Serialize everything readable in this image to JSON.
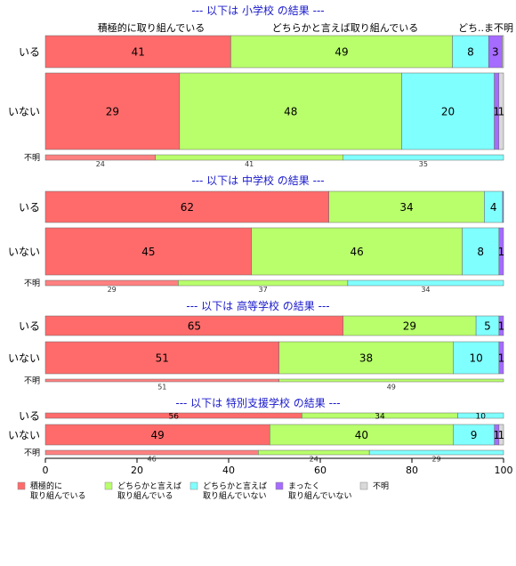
{
  "chart_data": {
    "type": "bar",
    "orientation": "horizontal-stacked",
    "xlim": [
      0,
      100
    ],
    "xticks": [
      0,
      20,
      40,
      60,
      80,
      100
    ],
    "column_headers": [
      "積極的に取り組んでいる",
      "どちらかと言えば取り組んでいる",
      "どち..ま不明"
    ],
    "legend": [
      {
        "key": "s1",
        "label_lines": [
          "積極的に",
          "取り組んでいる"
        ],
        "color": "#ff6b6b"
      },
      {
        "key": "s2",
        "label_lines": [
          "どちらかと言えば",
          "取り組んでいる"
        ],
        "color": "#b8ff6b"
      },
      {
        "key": "s3",
        "label_lines": [
          "どちらかと言えば",
          "取り組んでいない"
        ],
        "color": "#80ffff"
      },
      {
        "key": "s4",
        "label_lines": [
          "まったく",
          "取り組んでいない"
        ],
        "color": "#a66bff"
      },
      {
        "key": "s5",
        "label_lines": [
          "不明"
        ],
        "color": "#d9d9d9"
      }
    ],
    "panels": [
      {
        "title": "--- 以下は 小学校 の結果 ---",
        "rows": [
          {
            "label": "いる",
            "values": [
              41,
              49,
              8,
              3,
              0.3
            ],
            "labels": [
              "41",
              "49",
              "8",
              "3",
              ""
            ]
          },
          {
            "label": "いない",
            "values": [
              29,
              48,
              20,
              1,
              1
            ],
            "labels": [
              "29",
              "48",
              "20",
              "1",
              "1"
            ]
          },
          {
            "label": "不明",
            "values": [
              24,
              41,
              35
            ],
            "labels": [
              "24",
              "41",
              "35"
            ],
            "small": true
          }
        ]
      },
      {
        "title": "--- 以下は 中学校 の結果 ---",
        "rows": [
          {
            "label": "いる",
            "values": [
              62,
              34,
              4,
              0.2,
              0
            ],
            "labels": [
              "62",
              "34",
              "4",
              "",
              ""
            ]
          },
          {
            "label": "いない",
            "values": [
              45,
              46,
              8,
              1,
              0
            ],
            "labels": [
              "45",
              "46",
              "8",
              "1",
              ""
            ]
          },
          {
            "label": "不明",
            "values": [
              29,
              37,
              34
            ],
            "labels": [
              "29",
              "37",
              "34"
            ],
            "small": true
          }
        ]
      },
      {
        "title": "--- 以下は 高等学校 の結果 ---",
        "rows": [
          {
            "label": "いる",
            "values": [
              65,
              29,
              5,
              1,
              0
            ],
            "labels": [
              "65",
              "29",
              "5",
              "1",
              ""
            ]
          },
          {
            "label": "いない",
            "values": [
              51,
              38,
              10,
              1,
              0
            ],
            "labels": [
              "51",
              "38",
              "10",
              "1",
              ""
            ]
          },
          {
            "label": "不明",
            "values": [
              51,
              49
            ],
            "labels": [
              "51",
              "49"
            ],
            "small": true
          }
        ]
      },
      {
        "title": "--- 以下は 特別支援学校 の結果 ---",
        "rows": [
          {
            "label": "いる",
            "values": [
              56,
              34,
              10
            ],
            "labels": [
              "56",
              "34",
              "10"
            ],
            "thin": true
          },
          {
            "label": "いない",
            "values": [
              49,
              40,
              9,
              1,
              1
            ],
            "labels": [
              "49",
              "40",
              "9",
              "1",
              "1"
            ]
          },
          {
            "label": "不明",
            "values": [
              46,
              24,
              29
            ],
            "labels": [
              "46",
              "24",
              "29"
            ],
            "small": true
          }
        ]
      }
    ]
  }
}
